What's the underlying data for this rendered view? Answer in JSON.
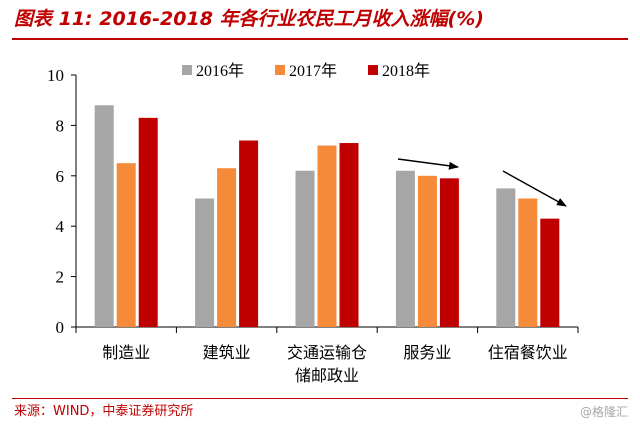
{
  "title": "图表 11: 2016-2018 年各行业农民工月收入涨幅(%)",
  "source": "来源：WIND，中泰证券研究所",
  "watermark": "@格隆汇",
  "colors": {
    "title": "#c00000",
    "s2016": "#a6a6a6",
    "s2017": "#f58a38",
    "s2018": "#c00000"
  },
  "chart_data": {
    "type": "bar",
    "title": "图表 11: 2016-2018 年各行业农民工月收入涨幅(%)",
    "categories": [
      [
        "制造业"
      ],
      [
        "建筑业"
      ],
      [
        "交通运输仓",
        "储邮政业"
      ],
      [
        "服务业"
      ],
      [
        "住宿餐饮业"
      ]
    ],
    "series": [
      {
        "name": "2016年",
        "color": "#a6a6a6",
        "values": [
          8.8,
          5.1,
          6.2,
          6.2,
          5.5
        ]
      },
      {
        "name": "2017年",
        "color": "#f58a38",
        "values": [
          6.5,
          6.3,
          7.2,
          6.0,
          5.1
        ]
      },
      {
        "name": "2018年",
        "color": "#c00000",
        "values": [
          8.3,
          7.4,
          7.3,
          5.9,
          4.3
        ]
      }
    ],
    "ylim": [
      0,
      10
    ],
    "yticks": [
      0,
      2,
      4,
      6,
      8,
      10
    ],
    "xlabel": "",
    "ylabel": "",
    "grid": false,
    "legend": "top-center",
    "annotations": [
      {
        "type": "arrow",
        "category": "服务业",
        "direction": "down"
      },
      {
        "type": "arrow",
        "category": "住宿餐饮业",
        "direction": "down"
      }
    ]
  }
}
